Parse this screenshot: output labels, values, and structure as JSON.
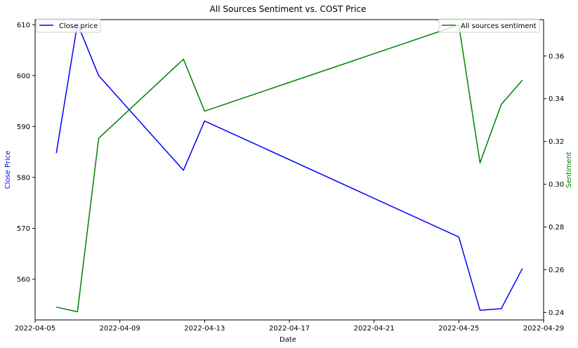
{
  "chart_data": {
    "type": "line",
    "title": "All Sources Sentiment vs. COST Price",
    "xlabel": "Date",
    "ylabel_left": "Close Price",
    "ylabel_right": "Sentiment",
    "x_ticks": [
      "2022-04-05",
      "2022-04-09",
      "2022-04-13",
      "2022-04-17",
      "2022-04-21",
      "2022-04-25",
      "2022-04-29"
    ],
    "y_left_ticks": [
      560,
      570,
      580,
      590,
      600,
      610
    ],
    "y_right_ticks": [
      "0.24",
      "0.26",
      "0.28",
      "0.30",
      "0.32",
      "0.34",
      "0.36"
    ],
    "xlim": [
      "2022-04-05",
      "2022-04-29"
    ],
    "ylim_left": [
      552.0,
      611.0
    ],
    "ylim_right": [
      0.2365,
      0.377
    ],
    "grid": false,
    "series": [
      {
        "name": "Close price",
        "axis": "left",
        "color": "#0000ff",
        "legend_position": "upper-left",
        "x": [
          "2022-04-06",
          "2022-04-07",
          "2022-04-08",
          "2022-04-12",
          "2022-04-13",
          "2022-04-25",
          "2022-04-26",
          "2022-04-27",
          "2022-04-28"
        ],
        "values": [
          584.8,
          610.2,
          600.0,
          581.4,
          591.1,
          568.3,
          553.9,
          554.2,
          562.1
        ]
      },
      {
        "name": "All sources sentiment",
        "axis": "right",
        "color": "#008000",
        "legend_position": "upper-right",
        "x": [
          "2022-04-06",
          "2022-04-07",
          "2022-04-08",
          "2022-04-12",
          "2022-04-13",
          "2022-04-25",
          "2022-04-26",
          "2022-04-27",
          "2022-04-28"
        ],
        "values": [
          0.2425,
          0.2403,
          0.3215,
          0.3585,
          0.3342,
          0.3745,
          0.31,
          0.3373,
          0.3487
        ]
      }
    ]
  }
}
